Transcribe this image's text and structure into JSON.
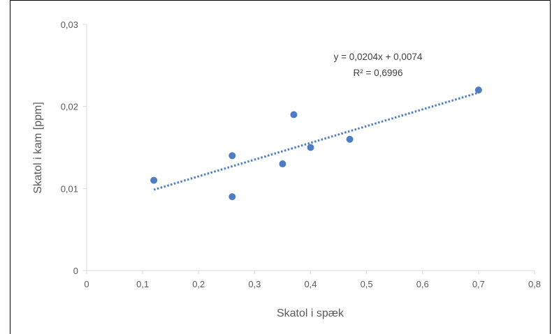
{
  "chart_data": {
    "type": "scatter",
    "title": "",
    "xlabel": "Skatol i spæk",
    "ylabel": "Skatol i kam [ppm]",
    "xlim": [
      0,
      0.8
    ],
    "ylim": [
      0,
      0.03
    ],
    "x_ticks": [
      "0",
      "0,1",
      "0,2",
      "0,3",
      "0,4",
      "0,5",
      "0,6",
      "0,7",
      "0,8"
    ],
    "y_ticks": [
      "0",
      "0,01",
      "0,02",
      "0,03"
    ],
    "grid": false,
    "color": "#4f7ec0",
    "series": [
      {
        "points": [
          {
            "x": 0.12,
            "y": 0.011
          },
          {
            "x": 0.26,
            "y": 0.014
          },
          {
            "x": 0.26,
            "y": 0.009
          },
          {
            "x": 0.35,
            "y": 0.013
          },
          {
            "x": 0.37,
            "y": 0.019
          },
          {
            "x": 0.4,
            "y": 0.015
          },
          {
            "x": 0.47,
            "y": 0.016
          },
          {
            "x": 0.7,
            "y": 0.022
          }
        ]
      }
    ],
    "trendline": {
      "type": "linear",
      "slope": 0.0204,
      "intercept": 0.0074,
      "x_range": [
        0.12,
        0.7
      ],
      "style": "dotted",
      "equation": "y = 0,0204x  + 0,0074",
      "r_squared": "R² = 0,6996"
    }
  }
}
